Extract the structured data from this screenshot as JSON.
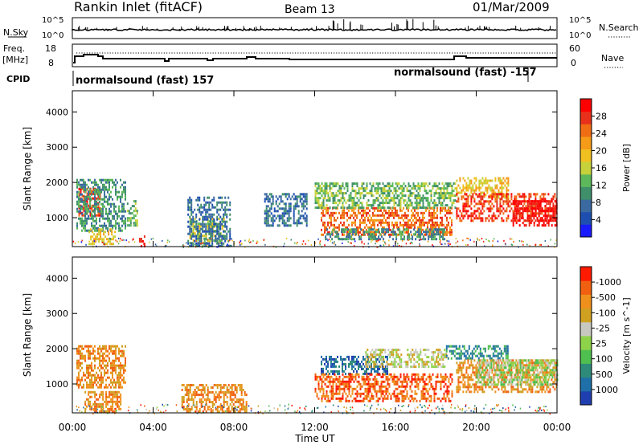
{
  "header": {
    "title": "Rankin Inlet (fitACF)",
    "beam": "Beam 13",
    "date": "01/Mar/2009"
  },
  "labels": {
    "nsky": "N.Sky",
    "nsearch": "N.Search",
    "freq_line1": "Freq.",
    "freq_line2": "[MHz]",
    "nave": "Nave",
    "cpid": "CPID",
    "cpid_left": "normalsound (fast) 157",
    "cpid_right": "normalsound (fast) -157",
    "nsky_ticks": [
      "10^5",
      "10^0"
    ],
    "nsearch_ticks": [
      "10^5",
      "10^0"
    ],
    "freq_ticks": [
      "18",
      "8"
    ],
    "nave_ticks": [
      "60",
      "0"
    ]
  },
  "chart_data": [
    {
      "type": "heatmap",
      "title": "",
      "xlabel": "",
      "ylabel": "Slant Range [km]",
      "x_ticks": [
        "00:00",
        "04:00",
        "08:00",
        "12:00",
        "16:00",
        "20:00",
        "00:00"
      ],
      "y_ticks": [
        1000,
        2000,
        3000,
        4000
      ],
      "ylim": [
        180,
        4600
      ],
      "colorbar": {
        "label": "Power [dB]",
        "ticks": [
          "4",
          "8",
          "12",
          "16",
          "20",
          "24",
          "28"
        ],
        "colors": [
          "#1a1aff",
          "#1e4fb0",
          "#3a6aa0",
          "#3f8f6b",
          "#5cb85a",
          "#c7d23a",
          "#f0c020",
          "#f59b18",
          "#f06d14",
          "#e8301a",
          "#ff0000"
        ]
      },
      "regions": [
        {
          "t0": 0.3,
          "t1": 1.4,
          "r0": 1050,
          "r1": 1850,
          "level": 9
        },
        {
          "t0": 0.2,
          "t1": 2.6,
          "r0": 600,
          "r1": 2100,
          "level": 3
        },
        {
          "t0": 0.8,
          "t1": 2.1,
          "r0": 250,
          "r1": 700,
          "level": 6
        },
        {
          "t0": 2.7,
          "t1": 3.2,
          "r0": 800,
          "r1": 1500,
          "level": 4
        },
        {
          "t0": 3.3,
          "t1": 3.6,
          "r0": 180,
          "r1": 500,
          "level": 10
        },
        {
          "t0": 5.8,
          "t1": 7.5,
          "r0": 300,
          "r1": 1000,
          "level": 5
        },
        {
          "t0": 5.7,
          "t1": 7.8,
          "r0": 200,
          "r1": 1600,
          "level": 2
        },
        {
          "t0": 9.5,
          "t1": 11.6,
          "r0": 800,
          "r1": 1700,
          "level": 2
        },
        {
          "t0": 12.3,
          "t1": 18.8,
          "r0": 500,
          "r1": 1300,
          "level": 8
        },
        {
          "t0": 12.0,
          "t1": 19.0,
          "r0": 1300,
          "r1": 2000,
          "level": 4
        },
        {
          "t0": 12.5,
          "t1": 18.5,
          "r0": 400,
          "r1": 700,
          "level": 3
        },
        {
          "t0": 19.0,
          "t1": 21.6,
          "r0": 1600,
          "r1": 2150,
          "level": 6
        },
        {
          "t0": 19.0,
          "t1": 24.0,
          "r0": 900,
          "r1": 1700,
          "level": 9
        },
        {
          "t0": 21.8,
          "t1": 24.0,
          "r0": 800,
          "r1": 1500,
          "level": 10
        }
      ]
    },
    {
      "type": "heatmap",
      "title": "",
      "xlabel": "Time UT",
      "ylabel": "Slant Range [km]",
      "x_ticks": [
        "00:00",
        "04:00",
        "08:00",
        "12:00",
        "16:00",
        "20:00",
        "00:00"
      ],
      "y_ticks": [
        1000,
        2000,
        3000,
        4000
      ],
      "ylim": [
        180,
        4600
      ],
      "colorbar": {
        "label": "Velocity [m s^-1]",
        "ticks": [
          "1000",
          "500",
          "100",
          "25",
          "-25",
          "-100",
          "-500",
          "-1000"
        ],
        "colors": [
          "#1f3fb0",
          "#1f6fa8",
          "#2e8b7a",
          "#4fbf4f",
          "#8ed24a",
          "#c8c8c0",
          "#d0a020",
          "#f0901c",
          "#f06010",
          "#ff1a00"
        ]
      },
      "regions": [
        {
          "t0": 0.2,
          "t1": 2.6,
          "r0": 900,
          "r1": 2100,
          "level": 7
        },
        {
          "t0": 0.6,
          "t1": 2.4,
          "r0": 200,
          "r1": 800,
          "level": 7
        },
        {
          "t0": 5.4,
          "t1": 8.6,
          "r0": 200,
          "r1": 1000,
          "level": 7
        },
        {
          "t0": 12.3,
          "t1": 15.6,
          "r0": 1300,
          "r1": 1800,
          "level": 1
        },
        {
          "t0": 12.0,
          "t1": 18.8,
          "r0": 500,
          "r1": 1300,
          "level": 8
        },
        {
          "t0": 14.5,
          "t1": 18.5,
          "r0": 1500,
          "r1": 2000,
          "level": 5
        },
        {
          "t0": 18.5,
          "t1": 21.6,
          "r0": 1700,
          "r1": 2100,
          "level": 2
        },
        {
          "t0": 19.0,
          "t1": 24.0,
          "r0": 800,
          "r1": 1700,
          "level": 7
        },
        {
          "t0": 20.0,
          "t1": 24.0,
          "r0": 1000,
          "r1": 1700,
          "level": 4
        }
      ]
    }
  ]
}
